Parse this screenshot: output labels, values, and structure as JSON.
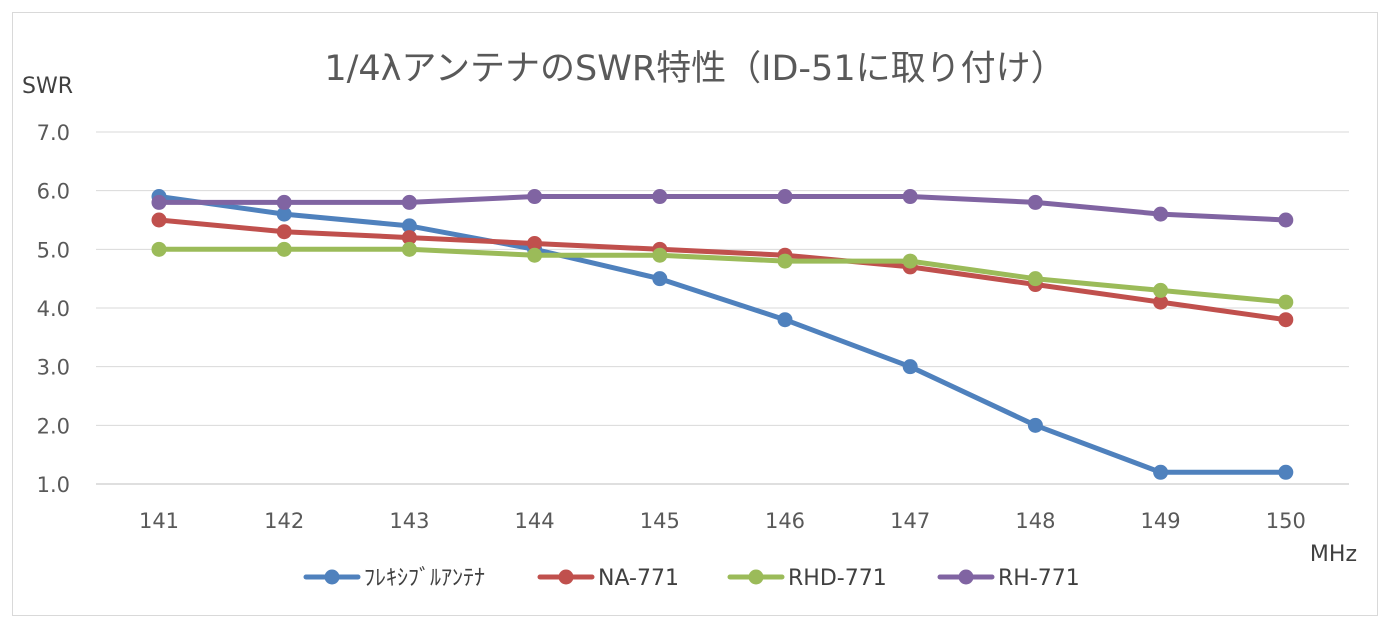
{
  "chart_data": {
    "type": "line",
    "title": "1/4λアンテナのSWR特性（ID-51に取り付け）",
    "xlabel": "MHz",
    "ylabel": "SWR",
    "categories": [
      "141",
      "142",
      "143",
      "144",
      "145",
      "146",
      "147",
      "148",
      "149",
      "150"
    ],
    "ylim": [
      1.0,
      7.0
    ],
    "yticks": [
      "1.0",
      "2.0",
      "3.0",
      "4.0",
      "5.0",
      "6.0",
      "7.0"
    ],
    "grid": true,
    "legend_position": "bottom",
    "series": [
      {
        "name": "ﾌﾚｷｼﾌﾞﾙｱﾝﾃﾅ",
        "color": "#4f81bd",
        "values": [
          5.9,
          5.6,
          5.4,
          5.0,
          4.5,
          3.8,
          3.0,
          2.0,
          1.2,
          1.2
        ]
      },
      {
        "name": "NA-771",
        "color": "#c0504d",
        "values": [
          5.5,
          5.3,
          5.2,
          5.1,
          5.0,
          4.9,
          4.7,
          4.4,
          4.1,
          3.8
        ]
      },
      {
        "name": "RHD-771",
        "color": "#9bbb59",
        "values": [
          5.0,
          5.0,
          5.0,
          4.9,
          4.9,
          4.8,
          4.8,
          4.5,
          4.3,
          4.1
        ]
      },
      {
        "name": "RH-771",
        "color": "#8064a2",
        "values": [
          5.8,
          5.8,
          5.8,
          5.9,
          5.9,
          5.9,
          5.9,
          5.8,
          5.6,
          5.5
        ]
      }
    ]
  }
}
